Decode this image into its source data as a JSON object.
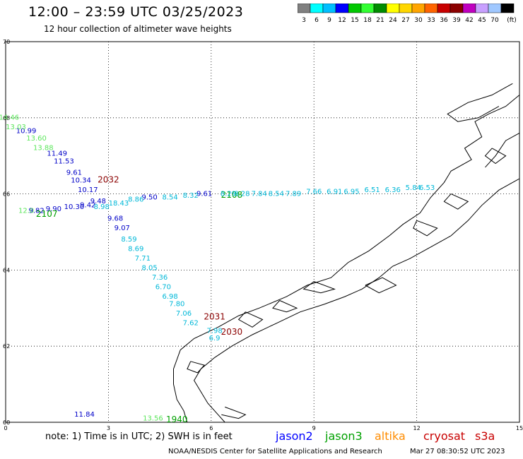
{
  "header": {
    "title": "12:00 – 23:59 UTC 03/25/2023",
    "subtitle": "12 hour collection of altimeter wave heights"
  },
  "color_scale": {
    "colors": [
      "#808080",
      "#00ffff",
      "#00bfff",
      "#0000ff",
      "#00c800",
      "#32ff32",
      "#008c00",
      "#ffff00",
      "#ffd700",
      "#ffa500",
      "#ff6400",
      "#c80000",
      "#8b0000",
      "#c000c0",
      "#c8a0ff",
      "#a0c8ff",
      "#000000"
    ],
    "labels": [
      "3",
      "6",
      "9",
      "12",
      "15",
      "18",
      "21",
      "24",
      "27",
      "30",
      "33",
      "36",
      "39",
      "42",
      "45",
      "70",
      "(ft)"
    ]
  },
  "axes": {
    "y_labels": [
      "70",
      "68",
      "66",
      "64",
      "62",
      "60"
    ],
    "x_labels": [
      "0",
      "3",
      "6",
      "9",
      "12",
      "15"
    ]
  },
  "chart_data": {
    "type": "scatter",
    "title": "12 hour collection of altimeter wave heights",
    "xlim": [
      0,
      15
    ],
    "ylim": [
      60,
      70
    ],
    "series": [
      {
        "name": "jason2",
        "color": "#0000c8",
        "points": [
          {
            "lon": 0.6,
            "lat": 67.6,
            "v": "10.99"
          },
          {
            "lon": 1.5,
            "lat": 67.0,
            "v": "11.49"
          },
          {
            "lon": 1.7,
            "lat": 66.8,
            "v": "11.53"
          },
          {
            "lon": 2.0,
            "lat": 66.5,
            "v": "9.61"
          },
          {
            "lon": 2.2,
            "lat": 66.3,
            "v": "10.34"
          },
          {
            "lon": 2.4,
            "lat": 66.05,
            "v": "10.17"
          },
          {
            "lon": 2.0,
            "lat": 65.6,
            "v": "10.30"
          },
          {
            "lon": 0.9,
            "lat": 65.5,
            "v": "9.82"
          },
          {
            "lon": 1.4,
            "lat": 65.55,
            "v": "9.90"
          },
          {
            "lon": 2.4,
            "lat": 65.65,
            "v": "9.42"
          },
          {
            "lon": 2.7,
            "lat": 65.75,
            "v": "9.48"
          },
          {
            "lon": 3.2,
            "lat": 65.3,
            "v": "9.68"
          },
          {
            "lon": 3.4,
            "lat": 65.05,
            "v": "9.07"
          },
          {
            "lon": 4.2,
            "lat": 65.85,
            "v": "9.50"
          },
          {
            "lon": 5.8,
            "lat": 65.95,
            "v": "9.61"
          },
          {
            "lon": 2.3,
            "lat": 60.15,
            "v": "11.84"
          }
        ]
      },
      {
        "name": "jason3",
        "color": "#00a000",
        "points": [
          {
            "lon": 1.2,
            "lat": 65.4,
            "v": "2107"
          },
          {
            "lon": 6.6,
            "lat": 65.9,
            "v": "2108"
          },
          {
            "lon": 5.0,
            "lat": 60.0,
            "v": "1940"
          }
        ]
      },
      {
        "name": "jason3-low",
        "color": "#5ce65c",
        "points": [
          {
            "lon": 0.1,
            "lat": 67.95,
            "v": "14.46"
          },
          {
            "lon": 0.3,
            "lat": 67.7,
            "v": "13.03"
          },
          {
            "lon": 0.9,
            "lat": 67.4,
            "v": "13.60"
          },
          {
            "lon": 1.1,
            "lat": 67.15,
            "v": "13.88"
          },
          {
            "lon": 0.6,
            "lat": 65.5,
            "v": "12.0"
          },
          {
            "lon": 4.3,
            "lat": 60.05,
            "v": "13.56"
          }
        ]
      },
      {
        "name": "cryosat-text",
        "color": "#00b8d8",
        "points": [
          {
            "lon": 2.8,
            "lat": 65.6,
            "v": "8.98"
          },
          {
            "lon": 3.3,
            "lat": 65.7,
            "v": "18.43"
          },
          {
            "lon": 3.8,
            "lat": 65.8,
            "v": "8.86"
          },
          {
            "lon": 4.8,
            "lat": 65.85,
            "v": "8.54"
          },
          {
            "lon": 5.4,
            "lat": 65.9,
            "v": "8.32"
          },
          {
            "lon": 6.5,
            "lat": 65.95,
            "v": "8.29"
          },
          {
            "lon": 6.9,
            "lat": 65.95,
            "v": "8.28"
          },
          {
            "lon": 7.4,
            "lat": 65.95,
            "v": "7.84"
          },
          {
            "lon": 7.9,
            "lat": 65.95,
            "v": "8.54"
          },
          {
            "lon": 8.4,
            "lat": 65.95,
            "v": "7.89"
          },
          {
            "lon": 9.0,
            "lat": 66.0,
            "v": "7.66"
          },
          {
            "lon": 9.6,
            "lat": 66.0,
            "v": "6.91"
          },
          {
            "lon": 10.1,
            "lat": 66.0,
            "v": "6.95"
          },
          {
            "lon": 10.7,
            "lat": 66.05,
            "v": "6.51"
          },
          {
            "lon": 11.3,
            "lat": 66.05,
            "v": "6.36"
          },
          {
            "lon": 11.9,
            "lat": 66.1,
            "v": "5.84"
          },
          {
            "lon": 12.3,
            "lat": 66.1,
            "v": "6.53"
          },
          {
            "lon": 3.6,
            "lat": 64.75,
            "v": "8.59"
          },
          {
            "lon": 3.8,
            "lat": 64.5,
            "v": "8.69"
          },
          {
            "lon": 4.0,
            "lat": 64.25,
            "v": "7.71"
          },
          {
            "lon": 4.2,
            "lat": 64.0,
            "v": "8.05"
          },
          {
            "lon": 4.5,
            "lat": 63.75,
            "v": "7.36"
          },
          {
            "lon": 4.6,
            "lat": 63.5,
            "v": "6.70"
          },
          {
            "lon": 4.8,
            "lat": 63.25,
            "v": "6.98"
          },
          {
            "lon": 5.0,
            "lat": 63.05,
            "v": "7.80"
          },
          {
            "lon": 5.2,
            "lat": 62.8,
            "v": "7.06"
          },
          {
            "lon": 5.4,
            "lat": 62.55,
            "v": "7.62"
          },
          {
            "lon": 6.1,
            "lat": 62.35,
            "v": "7.98"
          },
          {
            "lon": 6.1,
            "lat": 62.15,
            "v": "6.9"
          }
        ]
      },
      {
        "name": "cryosat",
        "color": "#8b0000",
        "points": [
          {
            "lon": 3.0,
            "lat": 66.3,
            "v": "2032"
          },
          {
            "lon": 6.1,
            "lat": 62.7,
            "v": "2031"
          },
          {
            "lon": 6.6,
            "lat": 62.3,
            "v": "2030"
          }
        ]
      }
    ]
  },
  "footer": {
    "note": "note:  1) Time is in UTC;  2) SWH is in feet",
    "sat_jason2": "jason2",
    "sat_jason3": "jason3",
    "sat_altika": "altika",
    "sat_cryosat": "cryosat",
    "sat_s3a": "s3a",
    "credits": "NOAA/NESDIS Center for Satellite Applications and Research",
    "stamp": "Mar 27 08:30:52 UTC 2023"
  },
  "colors": {
    "jason2": "#0000ff",
    "jason3": "#00a000",
    "altika": "#ff8c00",
    "cryosat": "#c80000",
    "s3a": "#c80000"
  }
}
